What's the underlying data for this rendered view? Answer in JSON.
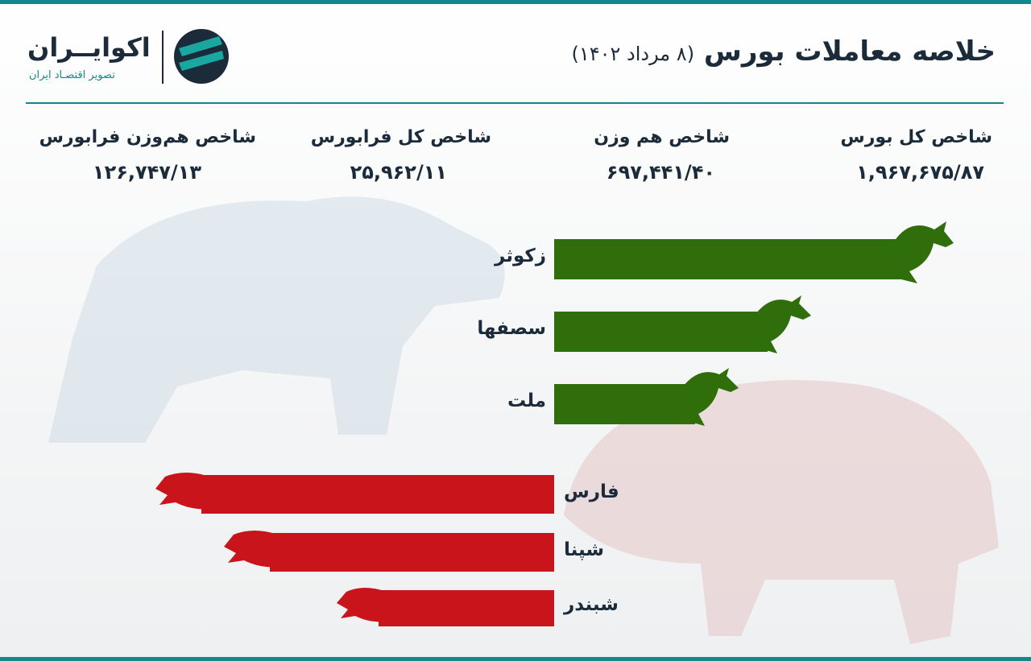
{
  "header": {
    "title": "خلاصه معاملات بورس",
    "date": "(۸ مرداد ۱۴۰۲)",
    "logo_name": "اکوایــران",
    "logo_tagline": "تصویر اقتصـاد ایران"
  },
  "indices": [
    {
      "label": "شاخص کل بورس",
      "value": "۱,۹۶۷,۶۷۵/۸۷"
    },
    {
      "label": "شاخص هم وزن",
      "value": "۶۹۷,۴۴۱/۴۰"
    },
    {
      "label": "شاخص کل فرابورس",
      "value": "۲۵,۹۶۲/۱۱"
    },
    {
      "label": "شاخص هم‌وزن فرابورس",
      "value": "۱۲۶,۷۴۷/۱۳"
    }
  ],
  "gainers": [
    "زکوثر",
    "سصفها",
    "ملت"
  ],
  "losers": [
    "فارس",
    "شپنا",
    "شبندر"
  ]
}
